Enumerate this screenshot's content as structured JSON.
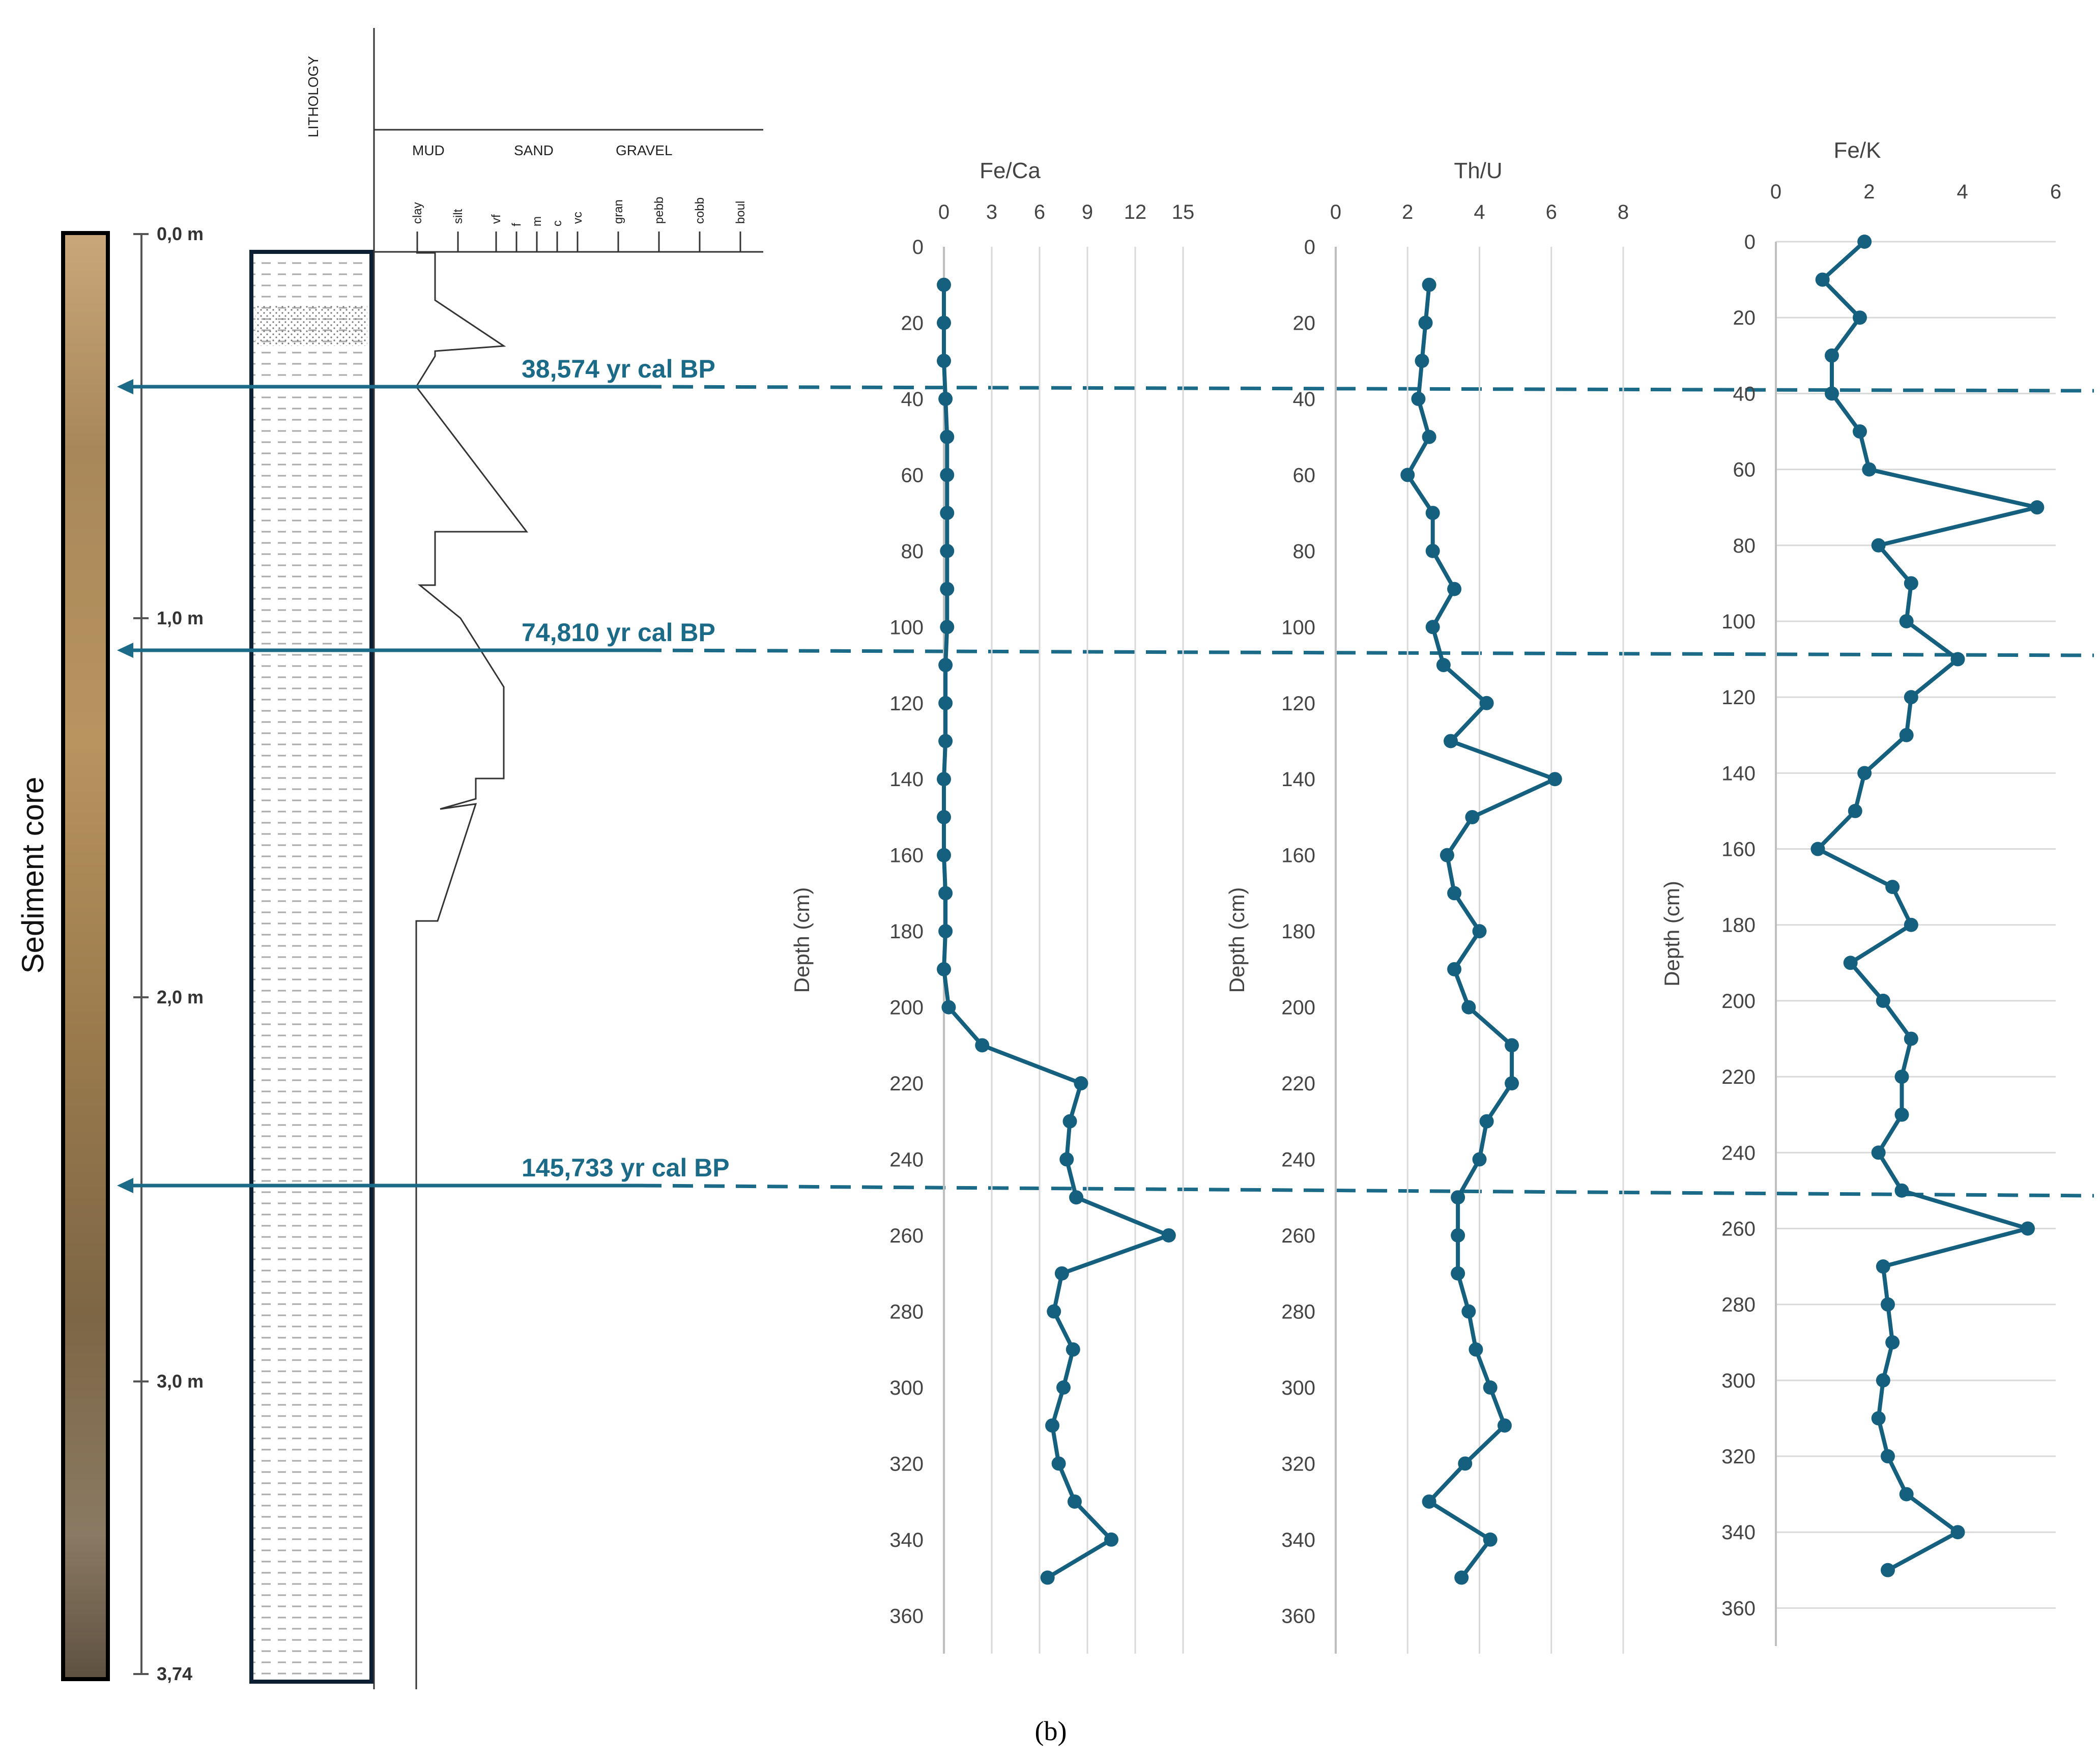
{
  "core": {
    "label": "Sediment core",
    "depth_ticks": [
      "0,0 m",
      "1,0 m",
      "2,0 m",
      "3,0 m",
      "3,74"
    ]
  },
  "lithology": {
    "title": "LITHOLOGY",
    "groups": [
      "MUD",
      "SAND",
      "GRAVEL"
    ],
    "grain_sizes": [
      "clay",
      "silt",
      "vf",
      "f",
      "m",
      "c",
      "vc",
      "gran",
      "pebb",
      "cobb",
      "boul"
    ]
  },
  "dates": [
    {
      "label": "38,574 yr cal BP",
      "depth": 37
    },
    {
      "label": "74,810 yr cal BP",
      "depth": 106
    },
    {
      "label": "145,733 yr cal BP",
      "depth": 248
    }
  ],
  "panel_label": "(b)",
  "colors": {
    "series": "#16607f",
    "date_line": "#1a6a88",
    "grid": "#d9d9d9",
    "axis": "#bfbfbf"
  },
  "chart_data": [
    {
      "type": "line",
      "title": "Fe/Ca",
      "xlabel": "",
      "ylabel": "Depth (cm)",
      "xlim": [
        0,
        15
      ],
      "xticks": [
        0,
        3,
        6,
        9,
        12,
        15
      ],
      "ylim": [
        0,
        370
      ],
      "yticks": [
        0,
        20,
        40,
        60,
        80,
        100,
        120,
        140,
        160,
        180,
        200,
        220,
        240,
        260,
        280,
        300,
        320,
        340,
        360
      ],
      "y_inverted": true,
      "grid": "vertical",
      "series": [
        {
          "x": [
            0.0,
            0.0,
            0.0,
            0.1,
            0.2,
            0.2,
            0.2,
            0.2,
            0.2,
            0.2,
            0.1,
            0.1,
            0.1,
            0.0,
            0.0,
            0.0,
            0.1,
            0.1,
            0.0,
            0.3,
            2.4,
            8.6,
            7.9,
            7.7,
            8.3,
            14.1,
            7.4,
            6.9,
            8.1,
            7.5,
            6.8,
            7.2,
            8.2,
            10.5,
            6.5
          ],
          "y": [
            10,
            20,
            30,
            40,
            50,
            60,
            70,
            80,
            90,
            100,
            110,
            120,
            130,
            140,
            150,
            160,
            170,
            180,
            190,
            200,
            210,
            220,
            230,
            240,
            250,
            260,
            270,
            280,
            290,
            300,
            310,
            320,
            330,
            340,
            350
          ]
        }
      ]
    },
    {
      "type": "line",
      "title": "Th/U",
      "xlabel": "",
      "ylabel": "Depth (cm)",
      "xlim": [
        0,
        8
      ],
      "xticks": [
        0,
        2,
        4,
        6,
        8
      ],
      "ylim": [
        0,
        370
      ],
      "yticks": [
        0,
        20,
        40,
        60,
        80,
        100,
        120,
        140,
        160,
        180,
        200,
        220,
        240,
        260,
        280,
        300,
        320,
        340,
        360
      ],
      "y_inverted": true,
      "grid": "vertical",
      "series": [
        {
          "x": [
            2.6,
            2.5,
            2.4,
            2.3,
            2.6,
            2.0,
            2.7,
            2.7,
            3.3,
            2.7,
            3.0,
            4.2,
            3.2,
            6.1,
            3.8,
            3.1,
            3.3,
            4.0,
            3.3,
            3.7,
            4.9,
            4.9,
            4.2,
            4.0,
            3.4,
            3.4,
            3.4,
            3.7,
            3.9,
            4.3,
            4.7,
            3.6,
            2.6,
            4.3,
            3.5
          ],
          "y": [
            10,
            20,
            30,
            40,
            50,
            60,
            70,
            80,
            90,
            100,
            110,
            120,
            130,
            140,
            150,
            160,
            170,
            180,
            190,
            200,
            210,
            220,
            230,
            240,
            250,
            260,
            270,
            280,
            290,
            300,
            310,
            320,
            330,
            340,
            350
          ]
        }
      ]
    },
    {
      "type": "line",
      "title": "Fe/K",
      "xlabel": "",
      "ylabel": "Depth (cm)",
      "xlim": [
        0,
        6
      ],
      "xticks": [
        0,
        2,
        4,
        6
      ],
      "ylim": [
        0,
        370
      ],
      "yticks": [
        0,
        20,
        40,
        60,
        80,
        100,
        120,
        140,
        160,
        180,
        200,
        220,
        240,
        260,
        280,
        300,
        320,
        340,
        360
      ],
      "y_inverted": true,
      "grid": "horizontal",
      "series": [
        {
          "x": [
            1.9,
            1.0,
            1.8,
            1.2,
            1.2,
            1.8,
            2.0,
            5.6,
            2.2,
            2.9,
            2.8,
            3.9,
            2.9,
            2.8,
            1.9,
            1.7,
            0.9,
            2.5,
            2.9,
            1.6,
            2.3,
            2.9,
            2.7,
            2.7,
            2.2,
            2.7,
            5.4,
            2.3,
            2.4,
            2.5,
            2.3,
            2.2,
            2.4,
            2.8,
            3.9,
            2.4
          ],
          "y": [
            0,
            10,
            20,
            30,
            40,
            50,
            60,
            70,
            80,
            90,
            100,
            110,
            120,
            130,
            140,
            150,
            160,
            170,
            180,
            190,
            200,
            210,
            220,
            230,
            240,
            250,
            260,
            270,
            280,
            290,
            300,
            310,
            320,
            330,
            340,
            350
          ]
        }
      ]
    }
  ]
}
